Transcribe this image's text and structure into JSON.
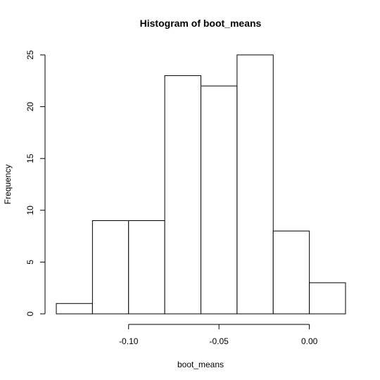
{
  "chart_data": {
    "type": "histogram",
    "title": "Histogram of boot_means",
    "xlabel": "boot_means",
    "ylabel": "Frequency",
    "bins": [
      {
        "start": -0.14,
        "end": -0.12,
        "count": 1
      },
      {
        "start": -0.12,
        "end": -0.1,
        "count": 9
      },
      {
        "start": -0.1,
        "end": -0.08,
        "count": 9
      },
      {
        "start": -0.08,
        "end": -0.06,
        "count": 23
      },
      {
        "start": -0.06,
        "end": -0.04,
        "count": 22
      },
      {
        "start": -0.04,
        "end": -0.02,
        "count": 25
      },
      {
        "start": -0.02,
        "end": 0.0,
        "count": 8
      },
      {
        "start": 0.0,
        "end": 0.02,
        "count": 3
      }
    ],
    "xticks": [
      {
        "value": -0.1,
        "label": "-0.10"
      },
      {
        "value": -0.05,
        "label": "-0.05"
      },
      {
        "value": 0.0,
        "label": "0.00"
      }
    ],
    "yticks": [
      {
        "value": 0,
        "label": "0"
      },
      {
        "value": 5,
        "label": "5"
      },
      {
        "value": 10,
        "label": "10"
      },
      {
        "value": 15,
        "label": "15"
      },
      {
        "value": 20,
        "label": "20"
      },
      {
        "value": 25,
        "label": "25"
      }
    ],
    "xlim": [
      -0.14,
      0.02
    ],
    "ylim": [
      0,
      25
    ],
    "bar_fill": "#ffffff",
    "bar_stroke": "#000000",
    "grid": false,
    "legend": "none"
  }
}
